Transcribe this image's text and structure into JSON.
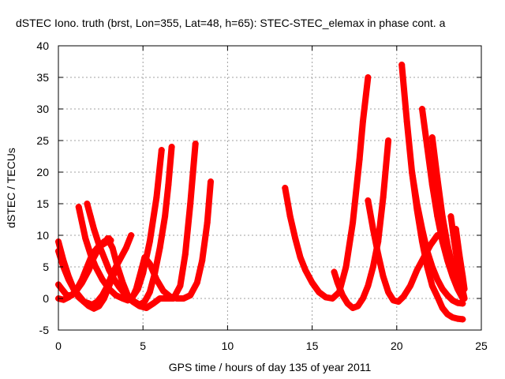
{
  "chart_data": {
    "type": "scatter",
    "title": "dSTEC Iono. truth (brst, Lon=355, Lat=48, h=65): STEC-STEC_elemax in phase cont. a",
    "xlabel": "GPS time / hours of day 135 of year 2011",
    "ylabel": "dSTEC  / TECUs",
    "xlim": [
      0,
      25
    ],
    "ylim": [
      -5,
      40
    ],
    "xticks": [
      "0",
      "5",
      "10",
      "15",
      "20",
      "25"
    ],
    "yticks": [
      "-5",
      "0",
      "5",
      "10",
      "15",
      "20",
      "25",
      "30",
      "35",
      "40"
    ],
    "grid": true,
    "legend": "none",
    "marker": "+",
    "color": "#ff0000",
    "series": [
      {
        "x": [
          0.0,
          0.3,
          0.6,
          0.9,
          1.2,
          1.5,
          1.8,
          2.0,
          2.3,
          2.6,
          2.9,
          3.2,
          3.6,
          4.0,
          4.3
        ],
        "y": [
          9,
          6,
          3.5,
          1.5,
          0.2,
          -0.5,
          -0.8,
          -1.0,
          -0.5,
          0.5,
          2,
          4,
          6,
          8,
          10
        ]
      },
      {
        "x": [
          0.0,
          0.3,
          0.6,
          1.0,
          1.4,
          1.8,
          2.1,
          2.4,
          2.7,
          3.0
        ],
        "y": [
          0,
          -0.2,
          0.2,
          1,
          2.5,
          4.5,
          6.5,
          8,
          9,
          9.5
        ]
      },
      {
        "x": [
          0.0,
          0.2,
          0.5,
          0.8,
          1.1,
          1.4,
          1.7,
          2.0,
          2.3,
          2.6,
          2.9,
          3.1
        ],
        "y": [
          2.2,
          1.5,
          0.5,
          0.5,
          1.5,
          3,
          5,
          7,
          8,
          8.5,
          9,
          9.2
        ]
      },
      {
        "x": [
          0.0,
          0.3,
          0.6,
          0.9,
          1.2,
          1.5,
          1.8,
          2.1,
          2.4,
          2.7,
          3.0,
          3.3
        ],
        "y": [
          7.5,
          5,
          3,
          1.5,
          0.5,
          -0.5,
          -1.2,
          -1.6,
          -1.2,
          0,
          2,
          4
        ]
      },
      {
        "x": [
          1.2,
          1.4,
          1.6,
          1.9,
          2.2,
          2.6,
          3.0,
          3.4,
          3.8,
          4.1,
          4.4,
          4.7,
          5.0,
          5.4,
          5.8,
          6.1
        ],
        "y": [
          14.5,
          12,
          9.5,
          7,
          5,
          3,
          1.5,
          0.5,
          0,
          -0.3,
          0.3,
          1.5,
          4,
          9,
          16,
          23.5
        ]
      },
      {
        "x": [
          1.7,
          1.9,
          2.1,
          2.4,
          2.7,
          3.0,
          3.3,
          3.6,
          3.9,
          4.2,
          4.5,
          4.8,
          5.1,
          5.4,
          5.7,
          6.0,
          6.3,
          6.5,
          6.7
        ],
        "y": [
          15,
          13,
          11,
          8.5,
          6.5,
          4.5,
          3,
          1.8,
          0.8,
          0,
          -0.5,
          -1,
          -0.5,
          1,
          4,
          8,
          13,
          18,
          24
        ]
      },
      {
        "x": [
          2.9,
          3.2,
          3.5,
          3.8,
          4.1,
          4.4,
          4.8,
          5.2,
          5.6,
          6.0,
          6.4,
          6.8,
          7.2,
          7.5,
          7.8,
          8.1
        ],
        "y": [
          9.5,
          8,
          5,
          2.5,
          0.5,
          -0.5,
          -1.2,
          -1.5,
          -0.8,
          0,
          0,
          0,
          2,
          7,
          15,
          24.5
        ]
      },
      {
        "x": [
          4.3,
          4.6,
          4.9,
          5.1,
          5.4,
          5.8,
          6.2,
          6.6,
          7.0,
          7.4,
          7.8,
          8.2,
          8.5,
          8.8,
          9.0
        ],
        "y": [
          -0.3,
          1.5,
          4.5,
          6.5,
          5.5,
          3,
          1.2,
          0.3,
          0,
          0,
          0.5,
          2.5,
          6,
          12,
          18.5
        ]
      },
      {
        "x": [
          13.4,
          13.7,
          14.0,
          14.3,
          14.6,
          15.0,
          15.4,
          15.8,
          16.2,
          16.6,
          17.0,
          17.4,
          17.8,
          18.0,
          18.3
        ],
        "y": [
          17.5,
          13,
          9.5,
          6.5,
          4.5,
          2.5,
          1,
          0.2,
          0,
          1,
          5,
          12,
          22,
          28,
          35
        ]
      },
      {
        "x": [
          16.3,
          16.5,
          16.8,
          17.1,
          17.4,
          17.7,
          18.0,
          18.3,
          18.6,
          18.9,
          19.2,
          19.5
        ],
        "y": [
          4.2,
          2.5,
          0.5,
          -0.8,
          -1.5,
          -1.2,
          0,
          2,
          5,
          9,
          16,
          25
        ]
      },
      {
        "x": [
          18.3,
          18.6,
          18.9,
          19.2,
          19.5,
          19.8,
          20.1,
          20.4,
          20.8,
          21.2,
          21.6,
          22.0,
          22.4
        ],
        "y": [
          15.5,
          11,
          7,
          3.5,
          1,
          -0.3,
          -0.5,
          0.3,
          2,
          4.5,
          6.5,
          8.5,
          10
        ]
      },
      {
        "x": [
          20.3,
          20.6,
          20.9,
          21.2,
          21.5,
          21.8,
          22.1,
          22.4,
          22.7,
          23.0,
          23.3,
          23.6,
          23.9
        ],
        "y": [
          37,
          28,
          20,
          14,
          9,
          5,
          2,
          0.3,
          -1.5,
          -2.5,
          -3,
          -3.2,
          -3.3
        ]
      },
      {
        "x": [
          20.9,
          21.2,
          21.5,
          21.8,
          22.1,
          22.4,
          22.7,
          23.0,
          23.3,
          23.6,
          23.9
        ],
        "y": [
          20,
          15,
          11,
          7.5,
          5,
          3,
          1.5,
          0.5,
          -0.3,
          -0.7,
          -0.8
        ]
      },
      {
        "x": [
          21.5,
          21.8,
          22.1,
          22.4,
          22.7,
          23.0,
          23.3,
          23.6,
          23.9
        ],
        "y": [
          30,
          24,
          18,
          13,
          9,
          6,
          3.5,
          1.5,
          0
        ]
      },
      {
        "x": [
          22.1,
          22.4,
          22.7,
          23.0,
          23.3,
          23.6,
          23.9
        ],
        "y": [
          25.5,
          19,
          13,
          8.5,
          5,
          2.5,
          0.5
        ]
      },
      {
        "x": [
          23.2,
          23.4,
          23.6,
          23.8,
          24.0
        ],
        "y": [
          13,
          9,
          5.5,
          2.5,
          0
        ]
      },
      {
        "x": [
          23.5,
          23.7,
          23.9,
          24.0
        ],
        "y": [
          11,
          7,
          3.5,
          1.5
        ]
      }
    ]
  }
}
